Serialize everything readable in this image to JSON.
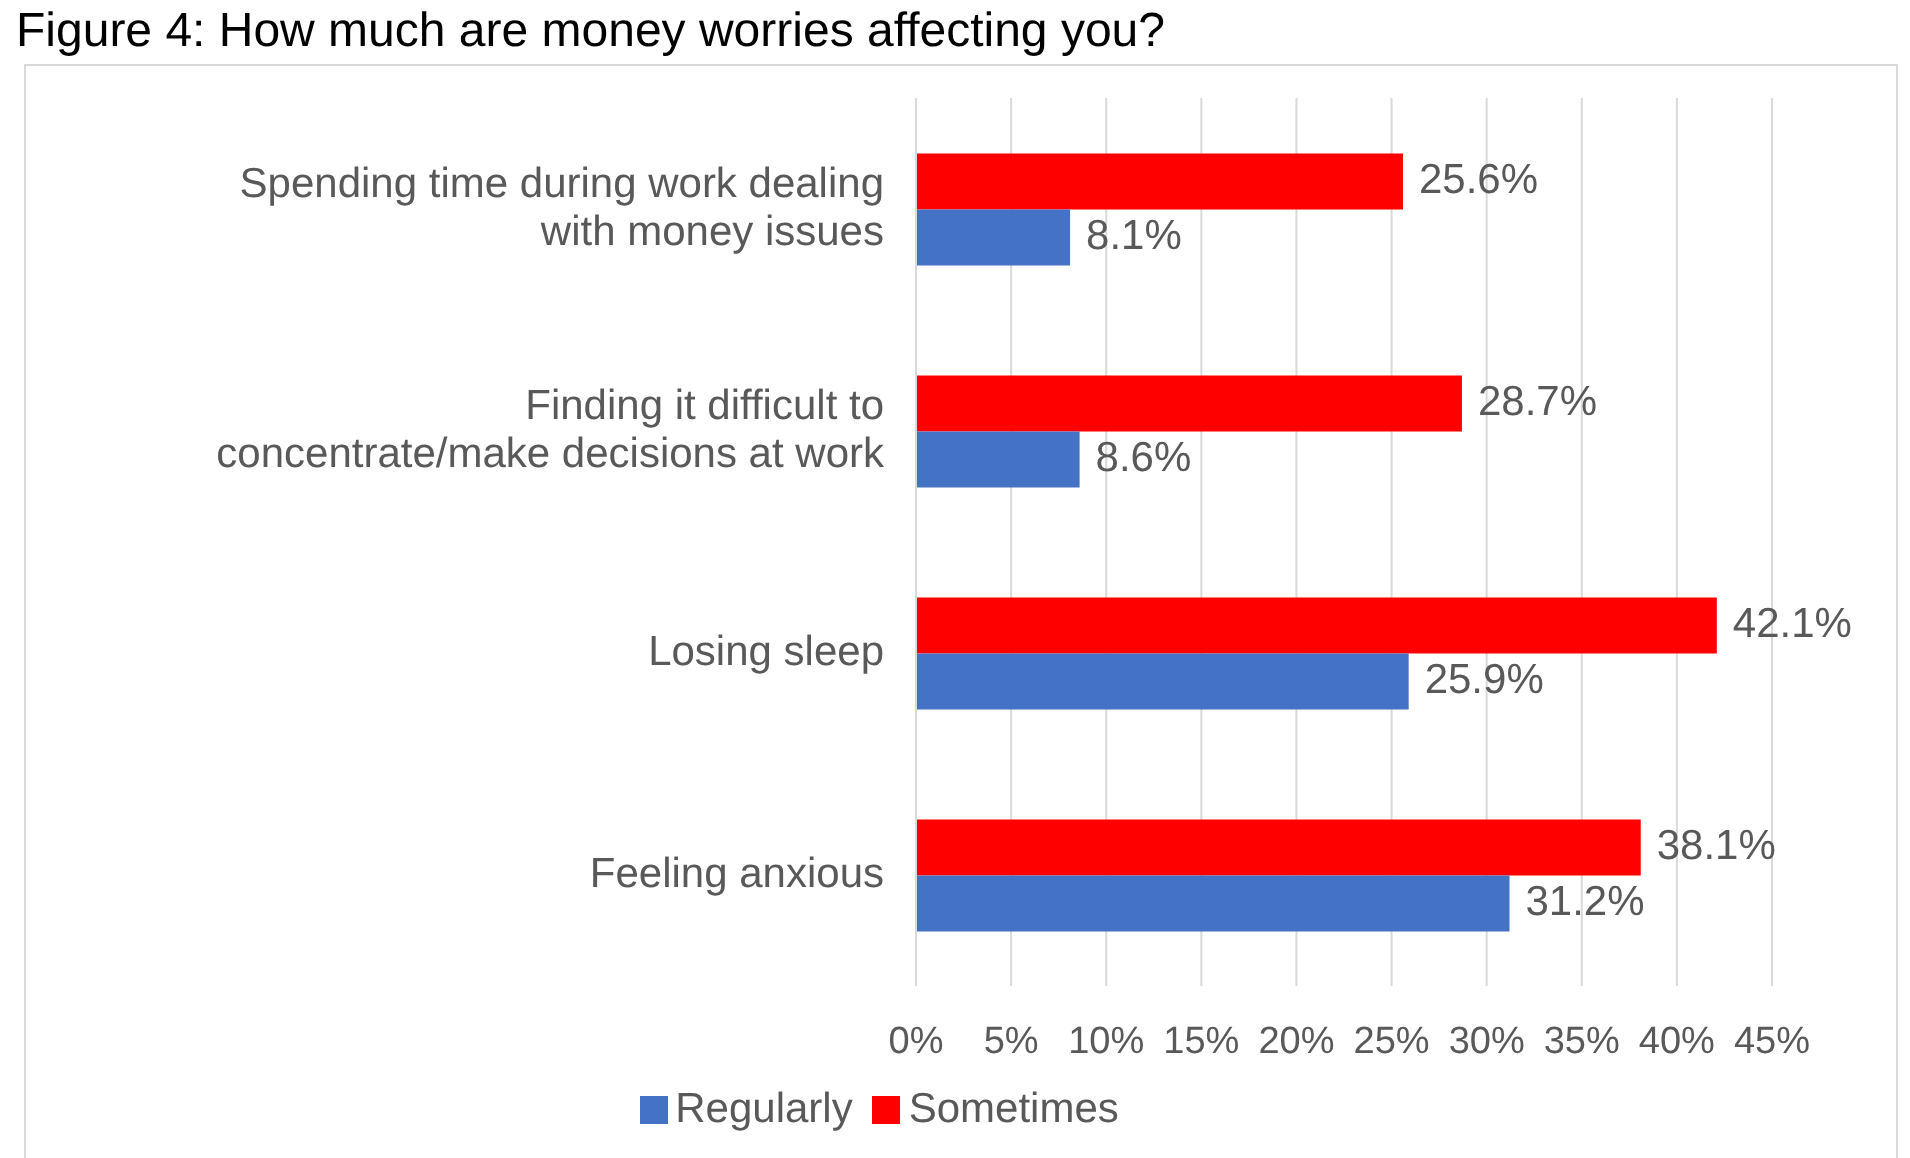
{
  "chart_data": {
    "type": "bar",
    "orientation": "horizontal",
    "title": "Figure 4: How much are money worries affecting you?",
    "categories": [
      "Spending time during work dealing with money issues",
      "Finding it difficult to concentrate/make decisions at work",
      "Losing sleep",
      "Feeling anxious"
    ],
    "series": [
      {
        "name": "Sometimes",
        "color": "#ff0000",
        "values": [
          25.6,
          28.7,
          42.1,
          38.1
        ],
        "value_labels": [
          "25.6%",
          "28.7%",
          "42.1%",
          "38.1%"
        ]
      },
      {
        "name": "Regularly",
        "color": "#4472c4",
        "values": [
          8.1,
          8.6,
          25.9,
          31.2
        ],
        "value_labels": [
          "8.1%",
          "8.6%",
          "25.9%",
          "31.2%"
        ]
      }
    ],
    "xlim": [
      0,
      45
    ],
    "xticks": [
      {
        "value": 0,
        "label": "0%"
      },
      {
        "value": 5,
        "label": "5%"
      },
      {
        "value": 10,
        "label": "10%"
      },
      {
        "value": 15,
        "label": "15%"
      },
      {
        "value": 20,
        "label": "20%"
      },
      {
        "value": 25,
        "label": "25%"
      },
      {
        "value": 30,
        "label": "30%"
      },
      {
        "value": 35,
        "label": "35%"
      },
      {
        "value": 40,
        "label": "40%"
      },
      {
        "value": 45,
        "label": "45%"
      }
    ],
    "grid": "x",
    "legend": "bottom"
  }
}
